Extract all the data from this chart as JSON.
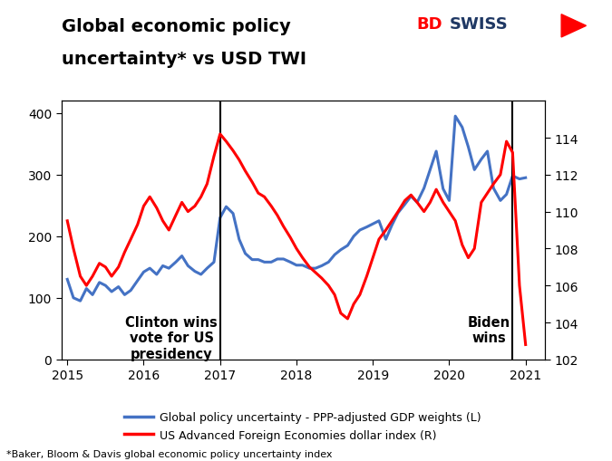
{
  "title_line1": "Global economic policy",
  "title_line2": "uncertainty* vs USD TWI",
  "subtitle_note": "*Baker, Bloom & Davis global economic policy uncertainty index",
  "legend1": "Global policy uncertainty - PPP-adjusted GDP weights (L)",
  "legend2": "US Advanced Foreign Economies dollar index (R)",
  "vline1_x": 2017.0,
  "vline1_label": "Clinton wins\nvote for US\npresidency",
  "vline2_x": 2020.83,
  "vline2_label": "Biden\nwins",
  "ylim_left": [
    0,
    420
  ],
  "ylim_right": [
    102,
    116
  ],
  "yticks_left": [
    0,
    100,
    200,
    300,
    400
  ],
  "yticks_right": [
    102,
    104,
    106,
    108,
    110,
    112,
    114
  ],
  "xlim": [
    2014.92,
    2021.25
  ],
  "xticks": [
    2015,
    2016,
    2017,
    2018,
    2019,
    2020,
    2021
  ],
  "blue_color": "#4472C4",
  "red_color": "#FF0000",
  "line_width": 2.2,
  "blue_x": [
    2015.0,
    2015.08,
    2015.17,
    2015.25,
    2015.33,
    2015.42,
    2015.5,
    2015.58,
    2015.67,
    2015.75,
    2015.83,
    2015.92,
    2016.0,
    2016.08,
    2016.17,
    2016.25,
    2016.33,
    2016.42,
    2016.5,
    2016.58,
    2016.67,
    2016.75,
    2016.83,
    2016.92,
    2017.0,
    2017.08,
    2017.17,
    2017.25,
    2017.33,
    2017.42,
    2017.5,
    2017.58,
    2017.67,
    2017.75,
    2017.83,
    2017.92,
    2018.0,
    2018.08,
    2018.17,
    2018.25,
    2018.33,
    2018.42,
    2018.5,
    2018.58,
    2018.67,
    2018.75,
    2018.83,
    2018.92,
    2019.0,
    2019.08,
    2019.17,
    2019.25,
    2019.33,
    2019.42,
    2019.5,
    2019.58,
    2019.67,
    2019.75,
    2019.83,
    2019.92,
    2020.0,
    2020.08,
    2020.17,
    2020.25,
    2020.33,
    2020.42,
    2020.5,
    2020.58,
    2020.67,
    2020.75,
    2020.83,
    2020.92,
    2021.0
  ],
  "blue_y": [
    130,
    100,
    95,
    115,
    105,
    125,
    120,
    110,
    118,
    105,
    112,
    128,
    142,
    148,
    138,
    152,
    148,
    158,
    168,
    152,
    143,
    138,
    148,
    158,
    230,
    248,
    237,
    195,
    172,
    162,
    162,
    158,
    158,
    163,
    163,
    158,
    153,
    153,
    148,
    148,
    152,
    158,
    170,
    178,
    185,
    200,
    210,
    215,
    220,
    225,
    195,
    218,
    238,
    252,
    265,
    255,
    278,
    308,
    338,
    277,
    258,
    395,
    377,
    345,
    308,
    325,
    338,
    278,
    258,
    268,
    298,
    293,
    295
  ],
  "red_x": [
    2015.0,
    2015.08,
    2015.17,
    2015.25,
    2015.33,
    2015.42,
    2015.5,
    2015.58,
    2015.67,
    2015.75,
    2015.83,
    2015.92,
    2016.0,
    2016.08,
    2016.17,
    2016.25,
    2016.33,
    2016.42,
    2016.5,
    2016.58,
    2016.67,
    2016.75,
    2016.83,
    2016.92,
    2017.0,
    2017.08,
    2017.17,
    2017.25,
    2017.33,
    2017.42,
    2017.5,
    2017.58,
    2017.67,
    2017.75,
    2017.83,
    2017.92,
    2018.0,
    2018.08,
    2018.17,
    2018.25,
    2018.33,
    2018.42,
    2018.5,
    2018.58,
    2018.67,
    2018.75,
    2018.83,
    2018.92,
    2019.0,
    2019.08,
    2019.17,
    2019.25,
    2019.33,
    2019.42,
    2019.5,
    2019.58,
    2019.67,
    2019.75,
    2019.83,
    2019.92,
    2020.0,
    2020.08,
    2020.17,
    2020.25,
    2020.33,
    2020.42,
    2020.5,
    2020.58,
    2020.67,
    2020.75,
    2020.83,
    2020.92,
    2021.0
  ],
  "red_y": [
    109.5,
    108.0,
    106.5,
    106.0,
    106.5,
    107.2,
    107.0,
    106.5,
    107.0,
    107.8,
    108.5,
    109.3,
    110.3,
    110.8,
    110.2,
    109.5,
    109.0,
    109.8,
    110.5,
    110.0,
    110.3,
    110.8,
    111.5,
    113.0,
    114.2,
    113.8,
    113.3,
    112.8,
    112.2,
    111.6,
    111.0,
    110.8,
    110.3,
    109.8,
    109.2,
    108.6,
    108.0,
    107.5,
    107.0,
    106.7,
    106.4,
    106.0,
    105.5,
    104.5,
    104.2,
    105.0,
    105.5,
    106.5,
    107.5,
    108.5,
    109.0,
    109.5,
    110.0,
    110.6,
    110.9,
    110.5,
    110.0,
    110.5,
    111.2,
    110.5,
    110.0,
    109.5,
    108.2,
    107.5,
    108.0,
    110.5,
    111.0,
    111.5,
    112.0,
    113.8,
    113.2,
    106.0,
    102.8
  ],
  "bdswiss_bd_color": "#FF0000",
  "bdswiss_swiss_color": "#1F3864",
  "annotation_fontsize": 10.5,
  "annotation_fontweight": "bold"
}
